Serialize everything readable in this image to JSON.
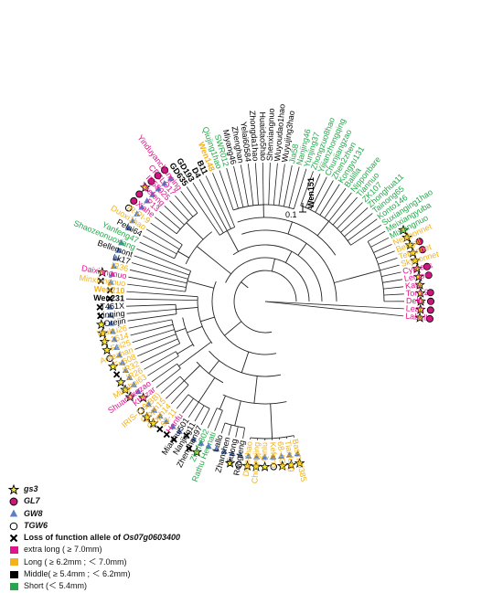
{
  "root_label": "Wen151",
  "scale_label": "0.1",
  "colors": {
    "extra_long": "#e0148c",
    "long": "#f3b217",
    "middle": "#000000",
    "short": "#23a84a",
    "gs3_star": "#f4e83a",
    "gl7_circle": "#c8187a",
    "gw8_triangle": "#5b7fc6"
  },
  "legend": {
    "gs3": "gs3",
    "gl7": "GL7",
    "gw8": "GW8",
    "tgw6": "TGW6",
    "loss_prefix": "Loss of function allele of ",
    "loss_gene": "Os07g0603400",
    "extra_long": "extra long ( ≥ 7.0mm)",
    "long": "Long ( ≥ 6.2mm ; ＜ 7.0mm)",
    "middle": "Middle( ≥ 5.4mm ; ＜ 6.2mm)",
    "short": "Short (＜ 5.4mm)"
  },
  "taxa": [
    {
      "name": "Basmati385",
      "cls": "long",
      "m": [
        "gw8",
        "gs3"
      ]
    },
    {
      "name": "Tianfeng",
      "cls": "long",
      "m": [
        "gw8",
        "gs3"
      ]
    },
    {
      "name": "68-4CH",
      "cls": "long",
      "m": [
        "gw8",
        "gs3"
      ]
    },
    {
      "name": "Kefeng",
      "cls": "long",
      "m": [
        "gw8",
        "tgw6"
      ]
    },
    {
      "name": "Qinlu",
      "cls": "long",
      "m": [
        "gw8",
        "gs3"
      ]
    },
    {
      "name": "Chuangjing",
      "cls": "long",
      "m": [
        "gw8",
        "gs3"
      ]
    },
    {
      "name": "Dian4hao",
      "cls": "long",
      "m": [
        "gw8",
        "gs3"
      ]
    },
    {
      "name": "Rongfeng",
      "cls": "middle",
      "m": [
        "gw8",
        "tgw6"
      ]
    },
    {
      "name": "Jiulong",
      "cls": "middle",
      "m": [
        "gw8",
        "gs3"
      ]
    },
    {
      "name": "Zhanshen",
      "cls": "middle",
      "m": [
        "gw8"
      ]
    },
    {
      "name": "Lallo",
      "cls": "middle",
      "m": [
        "gw8"
      ]
    },
    {
      "name": "Rathu Heenati",
      "cls": "short",
      "m": [
        "gw8"
      ]
    },
    {
      "name": "Zhefu802",
      "cls": "short",
      "m": [
        "gw8",
        "gs3"
      ]
    },
    {
      "name": "Zhenshan97",
      "cls": "middle",
      "m": [
        "gw8",
        "loss"
      ]
    },
    {
      "name": "Nanjing11",
      "cls": "middle",
      "m": [
        "loss"
      ]
    },
    {
      "name": "Mianhui501",
      "cls": "middle",
      "m": [
        "gw8",
        "loss"
      ]
    },
    {
      "name": "Hanfu",
      "cls": "extra_long",
      "m": [
        "gw8",
        "loss"
      ]
    },
    {
      "name": "93-11",
      "cls": "long",
      "m": [
        "gw8",
        "loss"
      ]
    },
    {
      "name": "Qibph14",
      "cls": "long",
      "m": [
        "gw8",
        "gs3"
      ]
    },
    {
      "name": "Qibph15",
      "cls": "long",
      "m": [
        "gw8",
        "gs3"
      ]
    },
    {
      "name": "IRIS-119(BB)",
      "cls": "long",
      "m": [
        "gw8",
        "tgw6"
      ]
    },
    {
      "name": "Khazar",
      "cls": "extra_long",
      "m": [
        "gs3"
      ]
    },
    {
      "name": "Shuangkezao",
      "cls": "extra_long",
      "m": [
        "gw8",
        "gs3"
      ]
    },
    {
      "name": "Minghui63",
      "cls": "long",
      "m": [
        "gw8",
        "gs3"
      ]
    },
    {
      "name": "IR26",
      "cls": "long",
      "m": [
        "gw8",
        "gs3"
      ]
    },
    {
      "name": "IR32",
      "cls": "long",
      "m": [
        "gw8",
        "loss"
      ]
    },
    {
      "name": "Fu608",
      "cls": "long",
      "m": [
        "gw8",
        "gs3"
      ]
    },
    {
      "name": "Aotezhan",
      "cls": "long",
      "m": [
        "gw8",
        "tgw6"
      ]
    },
    {
      "name": "Fei25",
      "cls": "long",
      "m": [
        "gw8",
        "gs3"
      ]
    },
    {
      "name": "S-1614",
      "cls": "long",
      "m": [
        "gw8",
        "gs3"
      ]
    },
    {
      "name": "Wuhu26",
      "cls": "long",
      "m": [
        "gw8",
        "gs3"
      ]
    },
    {
      "name": "Orejin",
      "cls": "middle",
      "m": [
        "gw8",
        "gs3"
      ]
    },
    {
      "name": "Linqing",
      "cls": "middle",
      "m": [
        "gw8",
        "loss"
      ]
    },
    {
      "name": "T461X",
      "cls": "middle",
      "m": [
        "gw8",
        "loss"
      ]
    },
    {
      "name": "Wen231",
      "cls": "middle_bold",
      "m": [
        "loss"
      ]
    },
    {
      "name": "Wen210",
      "cls": "long_bold",
      "m": [
        "loss"
      ]
    },
    {
      "name": "Minxiangnuo",
      "cls": "long",
      "m": [
        "gw8",
        "loss"
      ]
    },
    {
      "name": "Daixiangnuo",
      "cls": "extra_long",
      "m": [
        "gw8",
        "gs3"
      ]
    },
    {
      "name": "IR36",
      "cls": "long",
      "m": [
        "gw8"
      ]
    },
    {
      "name": "Lk17",
      "cls": "middle",
      "m": [
        "gw8"
      ]
    },
    {
      "name": "Bellemont",
      "cls": "middle",
      "m": [
        "gw8"
      ]
    },
    {
      "name": "Shaozeonuoxiang",
      "cls": "short",
      "m": [
        "gw8"
      ]
    },
    {
      "name": "Yanfeng47",
      "cls": "short",
      "m": []
    },
    {
      "name": "Pelai64",
      "cls": "middle",
      "m": [
        "gw8"
      ]
    },
    {
      "name": "Duoxi1hao",
      "cls": "long",
      "m": [
        "gw8"
      ]
    },
    {
      "name": "IR-PI-9",
      "cls": "long",
      "m": [
        "gw8",
        "tgw6"
      ]
    },
    {
      "name": "Xiahe",
      "cls": "extra_long",
      "m": [
        "gw8",
        "gl7"
      ]
    },
    {
      "name": "P13",
      "cls": "extra_long",
      "m": [
        "gw8",
        "gl7"
      ]
    },
    {
      "name": "Yuefeng",
      "cls": "extra_long",
      "m": [
        "gw8",
        "gs3"
      ]
    },
    {
      "name": "IR58025",
      "cls": "extra_long",
      "m": [
        "gw8",
        "gl7"
      ]
    },
    {
      "name": "CPSLO17",
      "cls": "extra_long",
      "m": [
        "gw8",
        "gl7"
      ]
    },
    {
      "name": "Yinduyanchanging",
      "cls": "extra_long",
      "m": [
        "gw8",
        "gl7"
      ]
    },
    {
      "name": "GD635",
      "cls": "middle_bold",
      "m": []
    },
    {
      "name": "GD193",
      "cls": "middle_bold",
      "m": []
    },
    {
      "name": "D4",
      "cls": "middle_bold",
      "m": []
    },
    {
      "name": "B11",
      "cls": "middle_bold",
      "m": []
    },
    {
      "name": "Wen148",
      "cls": "long_bold",
      "m": []
    },
    {
      "name": "Qiujing1hao",
      "cls": "short",
      "m": []
    },
    {
      "name": "SWR012",
      "cls": "short",
      "m": []
    },
    {
      "name": "Miyang46",
      "cls": "middle",
      "m": []
    },
    {
      "name": "Zhenghan",
      "cls": "middle",
      "m": []
    },
    {
      "name": "Yelai60584",
      "cls": "middle",
      "m": []
    },
    {
      "name": "Zhongda1hao",
      "cls": "middle",
      "m": []
    },
    {
      "name": "Huaidao5hao",
      "cls": "middle",
      "m": []
    },
    {
      "name": "Shenxiangnuo",
      "cls": "middle",
      "m": []
    },
    {
      "name": "Wuyoudao1hao",
      "cls": "middle",
      "m": []
    },
    {
      "name": "Wuyujing3hao",
      "cls": "middle",
      "m": []
    },
    {
      "name": "Jia58",
      "cls": "short",
      "m": []
    },
    {
      "name": "Nanjing46",
      "cls": "short",
      "m": []
    },
    {
      "name": "Yunjing37",
      "cls": "short",
      "m": []
    },
    {
      "name": "Zhongzuo8hao",
      "cls": "short",
      "m": []
    },
    {
      "name": "Yijianzhongqing",
      "cls": "short",
      "m": []
    },
    {
      "name": "Chunjiangzao",
      "cls": "short",
      "m": []
    },
    {
      "name": "Zhen2zhen",
      "cls": "short",
      "m": []
    },
    {
      "name": "Kongyu131",
      "cls": "short",
      "m": []
    },
    {
      "name": "Balilla",
      "cls": "short",
      "m": []
    },
    {
      "name": "Nipponbare",
      "cls": "short",
      "m": []
    },
    {
      "name": "Tiannuo",
      "cls": "short",
      "m": []
    },
    {
      "name": "ZK107",
      "cls": "short",
      "m": []
    },
    {
      "name": "Zhonghua11",
      "cls": "short",
      "m": []
    },
    {
      "name": "Tainong65",
      "cls": "short",
      "m": []
    },
    {
      "name": "Konto146",
      "cls": "short",
      "m": []
    },
    {
      "name": "Suxianging1hao",
      "cls": "short",
      "m": []
    },
    {
      "name": "Meixiangyuba",
      "cls": "short",
      "m": []
    },
    {
      "name": "Mixiangnuo",
      "cls": "short",
      "m": [
        "gs3"
      ]
    },
    {
      "name": "Newbonnet",
      "cls": "long",
      "m": [
        "gs3"
      ]
    },
    {
      "name": "Bengal",
      "cls": "long",
      "m": [
        "gs3",
        "gl7"
      ]
    },
    {
      "name": "Tebonnet",
      "cls": "long",
      "m": [
        "gs3",
        "gl7"
      ]
    },
    {
      "name": "Skybonnet",
      "cls": "long",
      "m": [
        "gs3"
      ]
    },
    {
      "name": "Cypress",
      "cls": "extra_long",
      "m": [
        "gs3",
        "gl7"
      ]
    },
    {
      "name": "Lemont",
      "cls": "extra_long",
      "m": [
        "gs3",
        "gl7"
      ]
    },
    {
      "name": "Katy",
      "cls": "extra_long",
      "m": [
        "gs3"
      ]
    },
    {
      "name": "Toro 2",
      "cls": "extra_long",
      "m": [
        "gs3",
        "gl7"
      ]
    },
    {
      "name": "Della",
      "cls": "extra_long",
      "m": [
        "gs3",
        "gl7"
      ]
    },
    {
      "name": "Leah",
      "cls": "extra_long",
      "m": [
        "gs3",
        "gl7"
      ]
    },
    {
      "name": "Labelle",
      "cls": "extra_long",
      "m": [
        "gs3",
        "gl7"
      ]
    }
  ]
}
